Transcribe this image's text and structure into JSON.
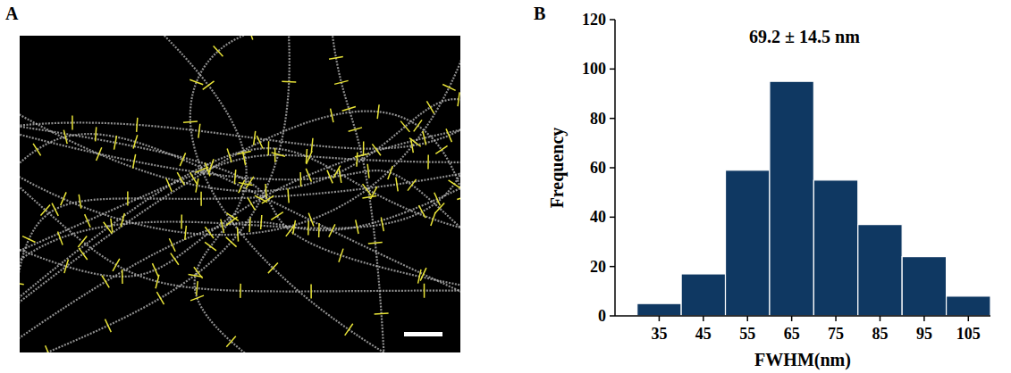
{
  "panel_labels": [
    "A",
    "B"
  ],
  "chart_data": {
    "type": "histogram",
    "title": "69.2 ± 14.5 nm",
    "x_label": "FWHM(nm)",
    "y_label": "Frequency",
    "bins": [
      30,
      40,
      50,
      60,
      70,
      80,
      90,
      100,
      110
    ],
    "values": [
      5,
      17,
      59,
      95,
      55,
      37,
      24,
      8
    ],
    "color": "#0f3862",
    "xlim": [
      25,
      110
    ],
    "xticks": [
      35,
      45,
      55,
      65,
      75,
      85,
      95,
      105
    ],
    "ylim": [
      0,
      120
    ],
    "yticks": [
      0,
      20,
      40,
      60,
      80,
      100,
      120
    ],
    "grid": false
  }
}
